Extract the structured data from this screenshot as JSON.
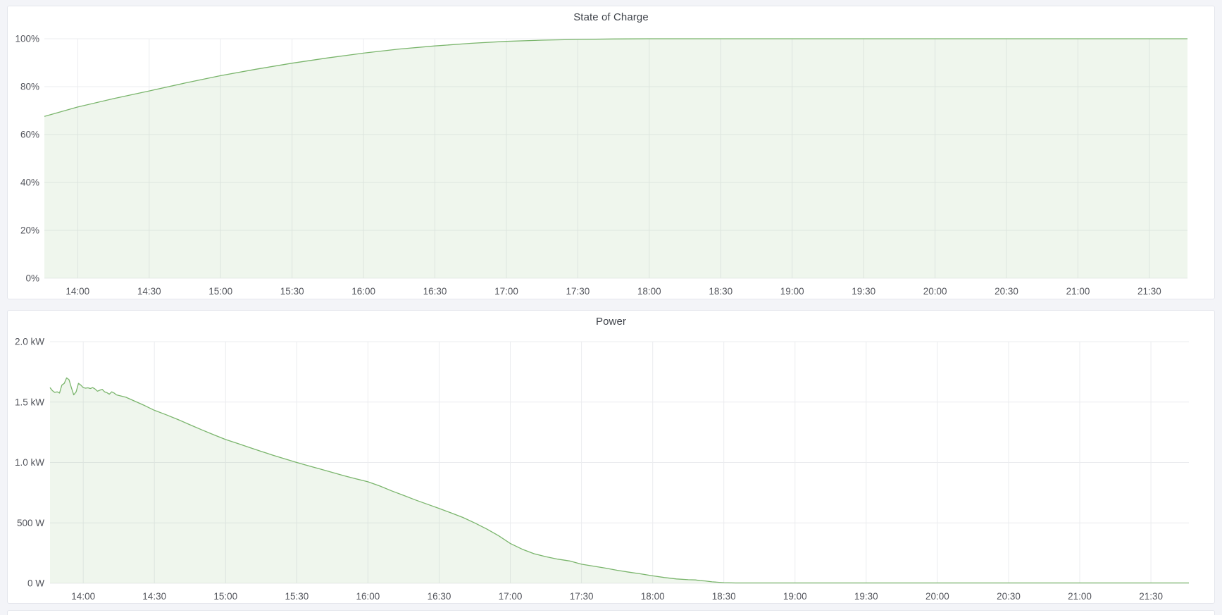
{
  "page": {
    "background": "#f3f4f8",
    "panel_background": "#ffffff",
    "panel_border": "#e4e6ec",
    "grid_color": "#ebecef",
    "tick_text_color": "#54565d",
    "title_text_color": "#3f434a"
  },
  "chart_data": [
    {
      "type": "area",
      "title": "State of Charge",
      "series_name": "state-of-charge",
      "color": "#7ab56c",
      "fill_color": "rgba(122,181,108,0.12)",
      "grid": true,
      "legend_position": "none",
      "ylim": [
        0,
        100
      ],
      "x_range_minutes": [
        826,
        1306
      ],
      "x_ticks": [
        {
          "minute": 840,
          "label": "14:00"
        },
        {
          "minute": 870,
          "label": "14:30"
        },
        {
          "minute": 900,
          "label": "15:00"
        },
        {
          "minute": 930,
          "label": "15:30"
        },
        {
          "minute": 960,
          "label": "16:00"
        },
        {
          "minute": 990,
          "label": "16:30"
        },
        {
          "minute": 1020,
          "label": "17:00"
        },
        {
          "minute": 1050,
          "label": "17:30"
        },
        {
          "minute": 1080,
          "label": "18:00"
        },
        {
          "minute": 1110,
          "label": "18:30"
        },
        {
          "minute": 1140,
          "label": "19:00"
        },
        {
          "minute": 1170,
          "label": "19:30"
        },
        {
          "minute": 1200,
          "label": "20:00"
        },
        {
          "minute": 1230,
          "label": "20:30"
        },
        {
          "minute": 1260,
          "label": "21:00"
        },
        {
          "minute": 1290,
          "label": "21:30"
        }
      ],
      "y_ticks": [
        {
          "value": 0,
          "label": "0%"
        },
        {
          "value": 20,
          "label": "20%"
        },
        {
          "value": 40,
          "label": "40%"
        },
        {
          "value": 60,
          "label": "60%"
        },
        {
          "value": 80,
          "label": "80%"
        },
        {
          "value": 100,
          "label": "100%"
        }
      ],
      "points": [
        [
          826,
          67.6
        ],
        [
          840,
          71.5
        ],
        [
          855,
          75.0
        ],
        [
          870,
          78.2
        ],
        [
          885,
          81.5
        ],
        [
          900,
          84.6
        ],
        [
          915,
          87.3
        ],
        [
          930,
          89.8
        ],
        [
          945,
          92.0
        ],
        [
          960,
          94.0
        ],
        [
          975,
          95.7
        ],
        [
          990,
          97.0
        ],
        [
          1005,
          98.1
        ],
        [
          1020,
          98.9
        ],
        [
          1035,
          99.4
        ],
        [
          1050,
          99.7
        ],
        [
          1065,
          99.9
        ],
        [
          1080,
          100
        ],
        [
          1140,
          100
        ],
        [
          1200,
          100
        ],
        [
          1260,
          100
        ],
        [
          1306,
          100
        ]
      ]
    },
    {
      "type": "area",
      "title": "Power",
      "series_name": "power",
      "color": "#7ab56c",
      "fill_color": "rgba(122,181,108,0.12)",
      "grid": true,
      "legend_position": "none",
      "ylim": [
        0,
        2000
      ],
      "x_range_minutes": [
        826,
        1306
      ],
      "x_ticks": [
        {
          "minute": 840,
          "label": "14:00"
        },
        {
          "minute": 870,
          "label": "14:30"
        },
        {
          "minute": 900,
          "label": "15:00"
        },
        {
          "minute": 930,
          "label": "15:30"
        },
        {
          "minute": 960,
          "label": "16:00"
        },
        {
          "minute": 990,
          "label": "16:30"
        },
        {
          "minute": 1020,
          "label": "17:00"
        },
        {
          "minute": 1050,
          "label": "17:30"
        },
        {
          "minute": 1080,
          "label": "18:00"
        },
        {
          "minute": 1110,
          "label": "18:30"
        },
        {
          "minute": 1140,
          "label": "19:00"
        },
        {
          "minute": 1170,
          "label": "19:30"
        },
        {
          "minute": 1200,
          "label": "20:00"
        },
        {
          "minute": 1230,
          "label": "20:30"
        },
        {
          "minute": 1260,
          "label": "21:00"
        },
        {
          "minute": 1290,
          "label": "21:30"
        }
      ],
      "y_ticks": [
        {
          "value": 0,
          "label": "0 W"
        },
        {
          "value": 500,
          "label": "500 W"
        },
        {
          "value": 1000,
          "label": "1.0 kW"
        },
        {
          "value": 1500,
          "label": "1.5 kW"
        },
        {
          "value": 2000,
          "label": "2.0 kW"
        }
      ],
      "points": [
        [
          826,
          1620
        ],
        [
          827,
          1595
        ],
        [
          828,
          1580
        ],
        [
          829,
          1585
        ],
        [
          830,
          1575
        ],
        [
          831,
          1640
        ],
        [
          832,
          1655
        ],
        [
          833,
          1700
        ],
        [
          834,
          1685
        ],
        [
          835,
          1620
        ],
        [
          836,
          1560
        ],
        [
          837,
          1585
        ],
        [
          838,
          1655
        ],
        [
          839,
          1640
        ],
        [
          840,
          1620
        ],
        [
          841,
          1615
        ],
        [
          842,
          1618
        ],
        [
          843,
          1612
        ],
        [
          844,
          1620
        ],
        [
          845,
          1608
        ],
        [
          846,
          1590
        ],
        [
          847,
          1598
        ],
        [
          848,
          1605
        ],
        [
          849,
          1585
        ],
        [
          850,
          1578
        ],
        [
          851,
          1565
        ],
        [
          852,
          1585
        ],
        [
          853,
          1575
        ],
        [
          854,
          1560
        ],
        [
          858,
          1540
        ],
        [
          862,
          1505
        ],
        [
          866,
          1470
        ],
        [
          870,
          1432
        ],
        [
          875,
          1395
        ],
        [
          880,
          1355
        ],
        [
          885,
          1312
        ],
        [
          890,
          1270
        ],
        [
          895,
          1230
        ],
        [
          900,
          1190
        ],
        [
          905,
          1158
        ],
        [
          910,
          1125
        ],
        [
          915,
          1092
        ],
        [
          920,
          1060
        ],
        [
          925,
          1030
        ],
        [
          930,
          1000
        ],
        [
          935,
          972
        ],
        [
          940,
          945
        ],
        [
          945,
          918
        ],
        [
          950,
          890
        ],
        [
          955,
          865
        ],
        [
          960,
          840
        ],
        [
          965,
          805
        ],
        [
          970,
          765
        ],
        [
          975,
          728
        ],
        [
          980,
          690
        ],
        [
          985,
          655
        ],
        [
          990,
          620
        ],
        [
          995,
          583
        ],
        [
          1000,
          545
        ],
        [
          1005,
          500
        ],
        [
          1010,
          450
        ],
        [
          1015,
          395
        ],
        [
          1020,
          330
        ],
        [
          1025,
          282
        ],
        [
          1030,
          245
        ],
        [
          1035,
          220
        ],
        [
          1040,
          200
        ],
        [
          1045,
          185
        ],
        [
          1050,
          158
        ],
        [
          1055,
          142
        ],
        [
          1060,
          126
        ],
        [
          1065,
          108
        ],
        [
          1070,
          92
        ],
        [
          1075,
          78
        ],
        [
          1080,
          62
        ],
        [
          1085,
          48
        ],
        [
          1090,
          36
        ],
        [
          1095,
          30
        ],
        [
          1098,
          28
        ],
        [
          1100,
          22
        ],
        [
          1102,
          20
        ],
        [
          1105,
          12
        ],
        [
          1108,
          8
        ],
        [
          1110,
          5
        ],
        [
          1115,
          3
        ],
        [
          1140,
          3
        ],
        [
          1200,
          3
        ],
        [
          1260,
          3
        ],
        [
          1306,
          3
        ]
      ]
    }
  ]
}
